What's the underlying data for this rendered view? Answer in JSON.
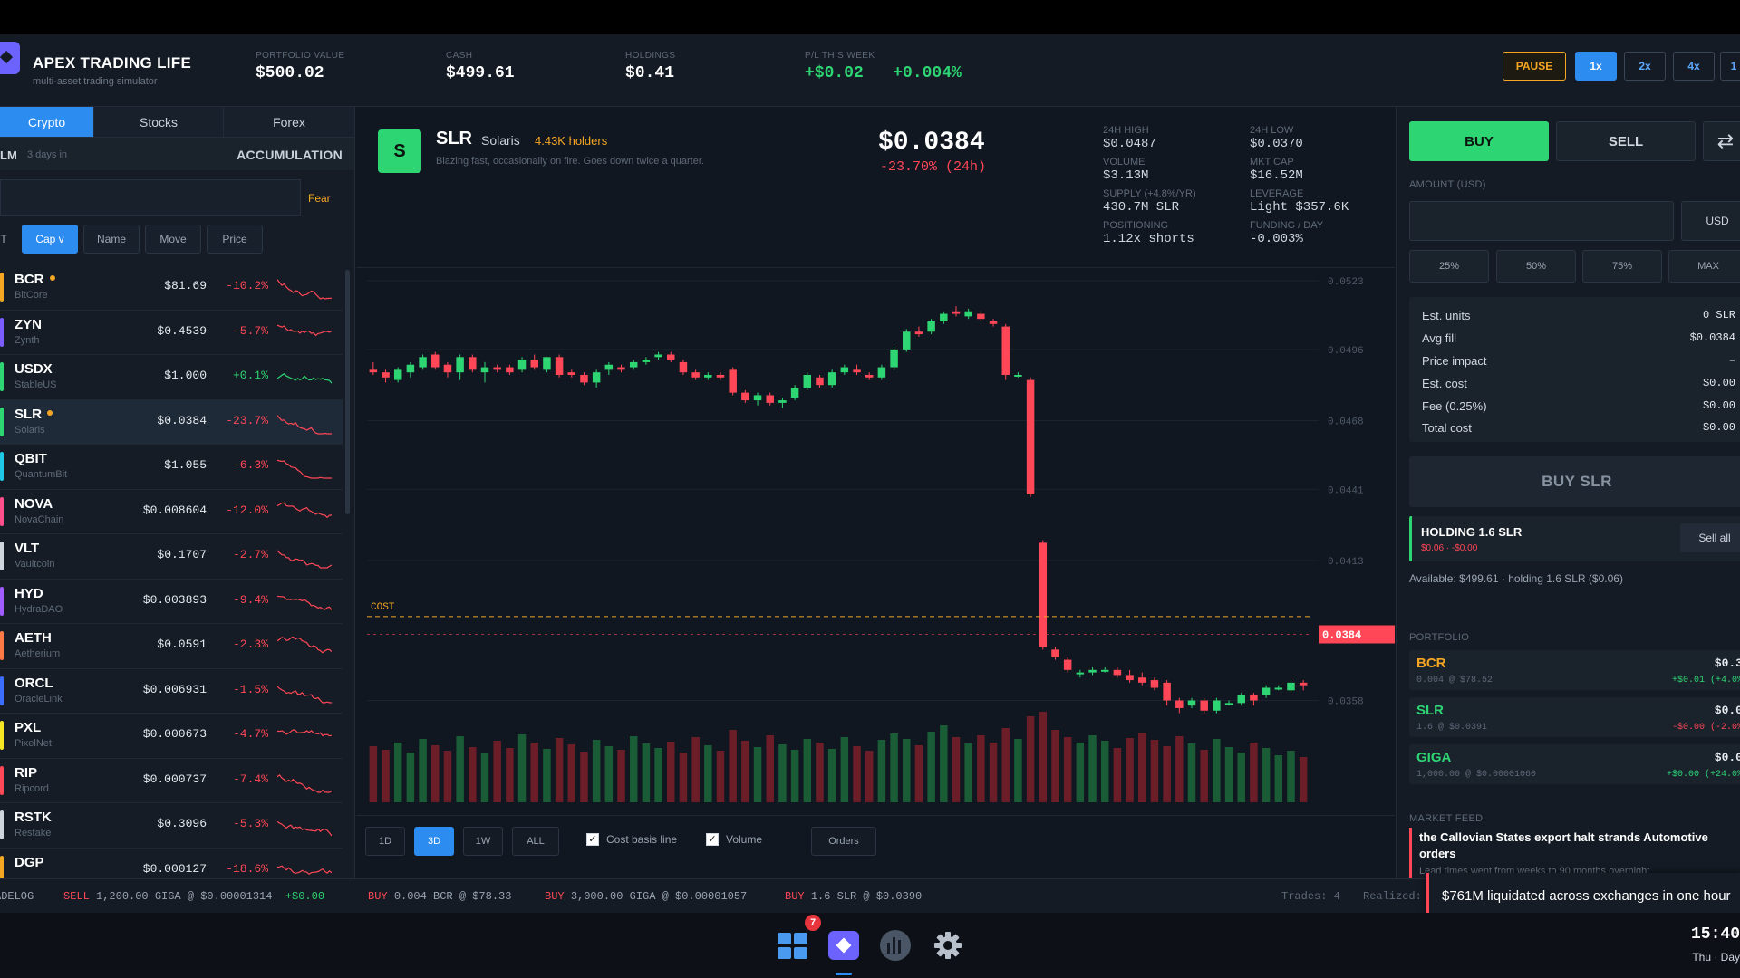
{
  "header": {
    "title": "APEX TRADING LIFE",
    "subtitle": "multi-asset trading simulator",
    "stats": [
      {
        "label": "PORTFOLIO VALUE",
        "value": "$500.02"
      },
      {
        "label": "CASH",
        "value": "$499.61"
      },
      {
        "label": "HOLDINGS",
        "value": "$0.41"
      },
      {
        "label": "P/L THIS WEEK",
        "value": "+$0.02",
        "value2": "+0.004%"
      }
    ],
    "speed": {
      "pause": "PAUSE",
      "options": [
        "1x",
        "2x",
        "4x",
        "1"
      ]
    }
  },
  "left": {
    "tabs": [
      "Crypto",
      "Stocks",
      "Forex"
    ],
    "regime": {
      "prefix": "LM",
      "days": "3 days in",
      "phase": "ACCUMULATION"
    },
    "sentiment": "Fear",
    "search_value": "",
    "sort": {
      "prefix": "T",
      "options": [
        "Cap v",
        "Name",
        "Move",
        "Price"
      ]
    },
    "assets": [
      {
        "sym": "BCR",
        "name": "BitCore",
        "price": "$81.69",
        "chg": "-10.2%",
        "dir": "dn",
        "color": "#f5a623",
        "held": true
      },
      {
        "sym": "ZYN",
        "name": "Zynth",
        "price": "$0.4539",
        "chg": "-5.7%",
        "dir": "dn",
        "color": "#7a5cff",
        "held": false
      },
      {
        "sym": "USDX",
        "name": "StableUS",
        "price": "$1.000",
        "chg": "+0.1%",
        "dir": "up",
        "color": "#2ed573",
        "held": false
      },
      {
        "sym": "SLR",
        "name": "Solaris",
        "price": "$0.0384",
        "chg": "-23.7%",
        "dir": "dn",
        "color": "#2ed573",
        "held": true
      },
      {
        "sym": "QBIT",
        "name": "QuantumBit",
        "price": "$1.055",
        "chg": "-6.3%",
        "dir": "dn",
        "color": "#1ec8e6",
        "held": false
      },
      {
        "sym": "NOVA",
        "name": "NovaChain",
        "price": "$0.008604",
        "chg": "-12.0%",
        "dir": "dn",
        "color": "#ff4f8b",
        "held": false
      },
      {
        "sym": "VLT",
        "name": "Vaultcoin",
        "price": "$0.1707",
        "chg": "-2.7%",
        "dir": "dn",
        "color": "#cfd6de",
        "held": false
      },
      {
        "sym": "HYD",
        "name": "HydraDAO",
        "price": "$0.003893",
        "chg": "-9.4%",
        "dir": "dn",
        "color": "#a05cff",
        "held": false
      },
      {
        "sym": "AETH",
        "name": "Aetherium",
        "price": "$0.0591",
        "chg": "-2.3%",
        "dir": "dn",
        "color": "#ff7a45",
        "held": false
      },
      {
        "sym": "ORCL",
        "name": "OracleLink",
        "price": "$0.006931",
        "chg": "-1.5%",
        "dir": "dn",
        "color": "#3d6dff",
        "held": false
      },
      {
        "sym": "PXL",
        "name": "PixelNet",
        "price": "$0.000673",
        "chg": "-4.7%",
        "dir": "dn",
        "color": "#f5e623",
        "held": false
      },
      {
        "sym": "RIP",
        "name": "Ripcord",
        "price": "$0.000737",
        "chg": "-7.4%",
        "dir": "dn",
        "color": "#ff4757",
        "held": false
      },
      {
        "sym": "RSTK",
        "name": "Restake",
        "price": "$0.3096",
        "chg": "-5.3%",
        "dir": "dn",
        "color": "#cfd6de",
        "held": false
      },
      {
        "sym": "DGP",
        "name": "",
        "price": "$0.000127",
        "chg": "-18.6%",
        "dir": "dn",
        "color": "#f5a623",
        "held": false
      }
    ]
  },
  "coin": {
    "icon_letter": "S",
    "symbol": "SLR",
    "name": "Solaris",
    "holders": "4.43K holders",
    "description": "Blazing fast, occasionally on fire. Goes down twice a quarter.",
    "price": "$0.0384",
    "change": "-23.70%  (24h)",
    "stats": [
      {
        "label": "24H HIGH",
        "value": "$0.0487"
      },
      {
        "label": "24H LOW",
        "value": "$0.0370"
      },
      {
        "label": "VOLUME",
        "value": "$3.13M"
      },
      {
        "label": "MKT CAP",
        "value": "$16.52M"
      },
      {
        "label": "SUPPLY (+4.8%/YR)",
        "value": "430.7M SLR"
      },
      {
        "label": "LEVERAGE",
        "value": "Light  $357.6K"
      },
      {
        "label": "POSITIONING",
        "value": "1.12x shorts"
      },
      {
        "label": "FUNDING / DAY",
        "value": "-0.003%"
      }
    ]
  },
  "chart_data": {
    "type": "candlestick",
    "y_ticks": [
      "0.0523",
      "0.0496",
      "0.0468",
      "0.0441",
      "0.0413",
      "0.0358"
    ],
    "ylim": [
      0.035,
      0.0528
    ],
    "cost_label": "COST",
    "cost_basis": 0.0391,
    "current_label": "0.0384",
    "current": 0.0384,
    "candles": [
      [
        0.0488,
        0.0491,
        0.0486,
        0.0487
      ],
      [
        0.0487,
        0.0488,
        0.0483,
        0.0485
      ],
      [
        0.0484,
        0.0489,
        0.0483,
        0.0488
      ],
      [
        0.0487,
        0.0491,
        0.0485,
        0.049
      ],
      [
        0.0489,
        0.0494,
        0.0488,
        0.0493
      ],
      [
        0.0494,
        0.0495,
        0.0488,
        0.0489
      ],
      [
        0.049,
        0.0491,
        0.0485,
        0.0487
      ],
      [
        0.0487,
        0.0494,
        0.0484,
        0.0493
      ],
      [
        0.0493,
        0.0494,
        0.0487,
        0.0488
      ],
      [
        0.0487,
        0.0491,
        0.0483,
        0.0489
      ],
      [
        0.0489,
        0.049,
        0.0487,
        0.0488
      ],
      [
        0.0489,
        0.049,
        0.0486,
        0.0487
      ],
      [
        0.0488,
        0.0493,
        0.0487,
        0.0492
      ],
      [
        0.0492,
        0.0494,
        0.0488,
        0.0489
      ],
      [
        0.0488,
        0.0493,
        0.0487,
        0.0493
      ],
      [
        0.0493,
        0.0494,
        0.0485,
        0.0486
      ],
      [
        0.0487,
        0.0488,
        0.0485,
        0.0486
      ],
      [
        0.0486,
        0.0487,
        0.0482,
        0.0483
      ],
      [
        0.0483,
        0.0488,
        0.0481,
        0.0487
      ],
      [
        0.0488,
        0.0491,
        0.0486,
        0.049
      ],
      [
        0.0489,
        0.049,
        0.0487,
        0.0488
      ],
      [
        0.0489,
        0.0492,
        0.0488,
        0.0491
      ],
      [
        0.0491,
        0.0493,
        0.049,
        0.0492
      ],
      [
        0.0493,
        0.0495,
        0.0492,
        0.0494
      ],
      [
        0.0494,
        0.0495,
        0.0491,
        0.0492
      ],
      [
        0.0491,
        0.0492,
        0.0486,
        0.0487
      ],
      [
        0.0487,
        0.0488,
        0.0484,
        0.0485
      ],
      [
        0.0485,
        0.0487,
        0.0484,
        0.0486
      ],
      [
        0.0486,
        0.0487,
        0.0484,
        0.0485
      ],
      [
        0.0488,
        0.0489,
        0.0478,
        0.0479
      ],
      [
        0.0479,
        0.048,
        0.0475,
        0.0476
      ],
      [
        0.0476,
        0.0479,
        0.0474,
        0.0478
      ],
      [
        0.0478,
        0.0479,
        0.0474,
        0.0475
      ],
      [
        0.0475,
        0.0477,
        0.0473,
        0.0476
      ],
      [
        0.0477,
        0.0482,
        0.0476,
        0.0481
      ],
      [
        0.0481,
        0.0487,
        0.048,
        0.0486
      ],
      [
        0.0485,
        0.0486,
        0.0481,
        0.0482
      ],
      [
        0.0482,
        0.0488,
        0.0481,
        0.0487
      ],
      [
        0.0487,
        0.049,
        0.0486,
        0.0489
      ],
      [
        0.0488,
        0.049,
        0.0486,
        0.0487
      ],
      [
        0.0486,
        0.0487,
        0.0484,
        0.0485
      ],
      [
        0.0485,
        0.049,
        0.0484,
        0.0489
      ],
      [
        0.0489,
        0.0497,
        0.0488,
        0.0496
      ],
      [
        0.0496,
        0.0504,
        0.0495,
        0.0503
      ],
      [
        0.0503,
        0.0505,
        0.0501,
        0.0502
      ],
      [
        0.0503,
        0.0508,
        0.0502,
        0.0507
      ],
      [
        0.0507,
        0.0511,
        0.0506,
        0.051
      ],
      [
        0.0511,
        0.0513,
        0.0509,
        0.051
      ],
      [
        0.0509,
        0.0512,
        0.0508,
        0.0511
      ],
      [
        0.051,
        0.0511,
        0.0507,
        0.0508
      ],
      [
        0.0507,
        0.0508,
        0.0505,
        0.0506
      ],
      [
        0.0505,
        0.0506,
        0.0484,
        0.0486
      ],
      [
        0.0486,
        0.0487,
        0.0485,
        0.0486
      ],
      [
        0.0484,
        0.0485,
        0.0438,
        0.0439
      ],
      [
        0.042,
        0.0421,
        0.0378,
        0.0379
      ],
      [
        0.0378,
        0.0379,
        0.0374,
        0.0375
      ],
      [
        0.0374,
        0.0375,
        0.0369,
        0.037
      ],
      [
        0.0369,
        0.037,
        0.0367,
        0.0369
      ],
      [
        0.0369,
        0.0371,
        0.0368,
        0.037
      ],
      [
        0.037,
        0.0371,
        0.0369,
        0.037
      ],
      [
        0.037,
        0.0371,
        0.0367,
        0.0368
      ],
      [
        0.0368,
        0.037,
        0.0365,
        0.0366
      ],
      [
        0.0367,
        0.0369,
        0.0364,
        0.0365
      ],
      [
        0.0366,
        0.0367,
        0.0362,
        0.0363
      ],
      [
        0.0365,
        0.0366,
        0.0356,
        0.0358
      ],
      [
        0.0358,
        0.0359,
        0.0353,
        0.0355
      ],
      [
        0.0356,
        0.0359,
        0.0355,
        0.0358
      ],
      [
        0.0358,
        0.0359,
        0.0353,
        0.0354
      ],
      [
        0.0354,
        0.0359,
        0.0353,
        0.0358
      ],
      [
        0.0357,
        0.0358,
        0.0356,
        0.0357
      ],
      [
        0.0357,
        0.0361,
        0.0356,
        0.036
      ],
      [
        0.036,
        0.0361,
        0.0356,
        0.0358
      ],
      [
        0.036,
        0.0364,
        0.0359,
        0.0363
      ],
      [
        0.0363,
        0.0364,
        0.0362,
        0.0363
      ],
      [
        0.0362,
        0.0366,
        0.0361,
        0.0365
      ],
      [
        0.0365,
        0.0366,
        0.0362,
        0.0364
      ]
    ],
    "volumes": [
      0.62,
      0.58,
      0.66,
      0.55,
      0.7,
      0.63,
      0.57,
      0.73,
      0.61,
      0.54,
      0.68,
      0.6,
      0.75,
      0.66,
      0.59,
      0.71,
      0.64,
      0.56,
      0.69,
      0.62,
      0.58,
      0.73,
      0.65,
      0.6,
      0.67,
      0.55,
      0.72,
      0.63,
      0.57,
      0.8,
      0.68,
      0.61,
      0.74,
      0.64,
      0.58,
      0.7,
      0.66,
      0.59,
      0.72,
      0.62,
      0.57,
      0.69,
      0.76,
      0.7,
      0.63,
      0.78,
      0.85,
      0.72,
      0.65,
      0.74,
      0.66,
      0.82,
      0.7,
      0.95,
      1.0,
      0.8,
      0.72,
      0.66,
      0.74,
      0.68,
      0.6,
      0.71,
      0.77,
      0.69,
      0.62,
      0.73,
      0.65,
      0.58,
      0.7,
      0.61,
      0.55,
      0.66,
      0.6,
      0.52,
      0.57,
      0.5
    ]
  },
  "controls": {
    "timeframes": [
      "1D",
      "3D",
      "1W",
      "ALL"
    ],
    "cost_basis": "Cost basis line",
    "volume": "Volume",
    "orders": "Orders"
  },
  "trade": {
    "buy": "BUY",
    "sell": "SELL",
    "swap_icon": "⇄",
    "amount_label": "AMOUNT (USD)",
    "amount_value": "",
    "currency": "USD",
    "pcts": [
      "25%",
      "50%",
      "75%",
      "MAX"
    ],
    "estimates": [
      {
        "label": "Est. units",
        "value": "0 SLR"
      },
      {
        "label": "Avg fill",
        "value": "$0.0384"
      },
      {
        "label": "Price impact",
        "value": "–"
      },
      {
        "label": "Est. cost",
        "value": "$0.00"
      },
      {
        "label": "Fee (0.25%)",
        "value": "$0.00"
      },
      {
        "label": "Total cost",
        "value": "$0.00"
      }
    ],
    "submit": "BUY SLR",
    "holding": {
      "title": "HOLDING 1.6 SLR",
      "sub": "$0.06 · -$0.00",
      "sell_all": "Sell all"
    },
    "available": "Available: $499.61  ·  holding 1.6 SLR ($0.06)",
    "portfolio_label": "PORTFOLIO",
    "portfolio": [
      {
        "sym": "BCR",
        "detail": "0.004 @ $78.52",
        "value": "$0.3",
        "pnl": "+$0.01 (+4.0%",
        "color": "#f5a623",
        "dir": "up"
      },
      {
        "sym": "SLR",
        "detail": "1.6 @ $0.0391",
        "value": "$0.0",
        "pnl": "-$0.00 (-2.0%",
        "color": "#2ed573",
        "dir": "dn"
      },
      {
        "sym": "GIGA",
        "detail": "1,000.00 @ $0.00001060",
        "value": "$0.0",
        "pnl": "+$0.00 (+24.0%",
        "color": "#2ed573",
        "dir": "up"
      }
    ],
    "feed_label": "MARKET FEED",
    "feed_title": "the Callovian States export halt strands Automotive orders",
    "feed_sub": "Lead times went from weeks to 90 months overnight"
  },
  "ticker": {
    "label": "ADELOG",
    "items": [
      {
        "side": "SELL",
        "text": "1,200.00 GIGA @ $0.00001314",
        "pnl": "+$0.00"
      },
      {
        "side": "BUY",
        "text": "0.004 BCR @ $78.33",
        "pnl": ""
      },
      {
        "side": "BUY",
        "text": "3,000.00 GIGA @ $0.00001057",
        "pnl": ""
      },
      {
        "side": "BUY",
        "text": "1.6 SLR @ $0.0390",
        "pnl": ""
      }
    ],
    "trades": "Trades: 4",
    "realized": "Realized:"
  },
  "toast": "$761M liquidated across exchanges in one hour",
  "taskbar": {
    "badge": "7",
    "time": "15:40",
    "day": "Thu · Day"
  }
}
